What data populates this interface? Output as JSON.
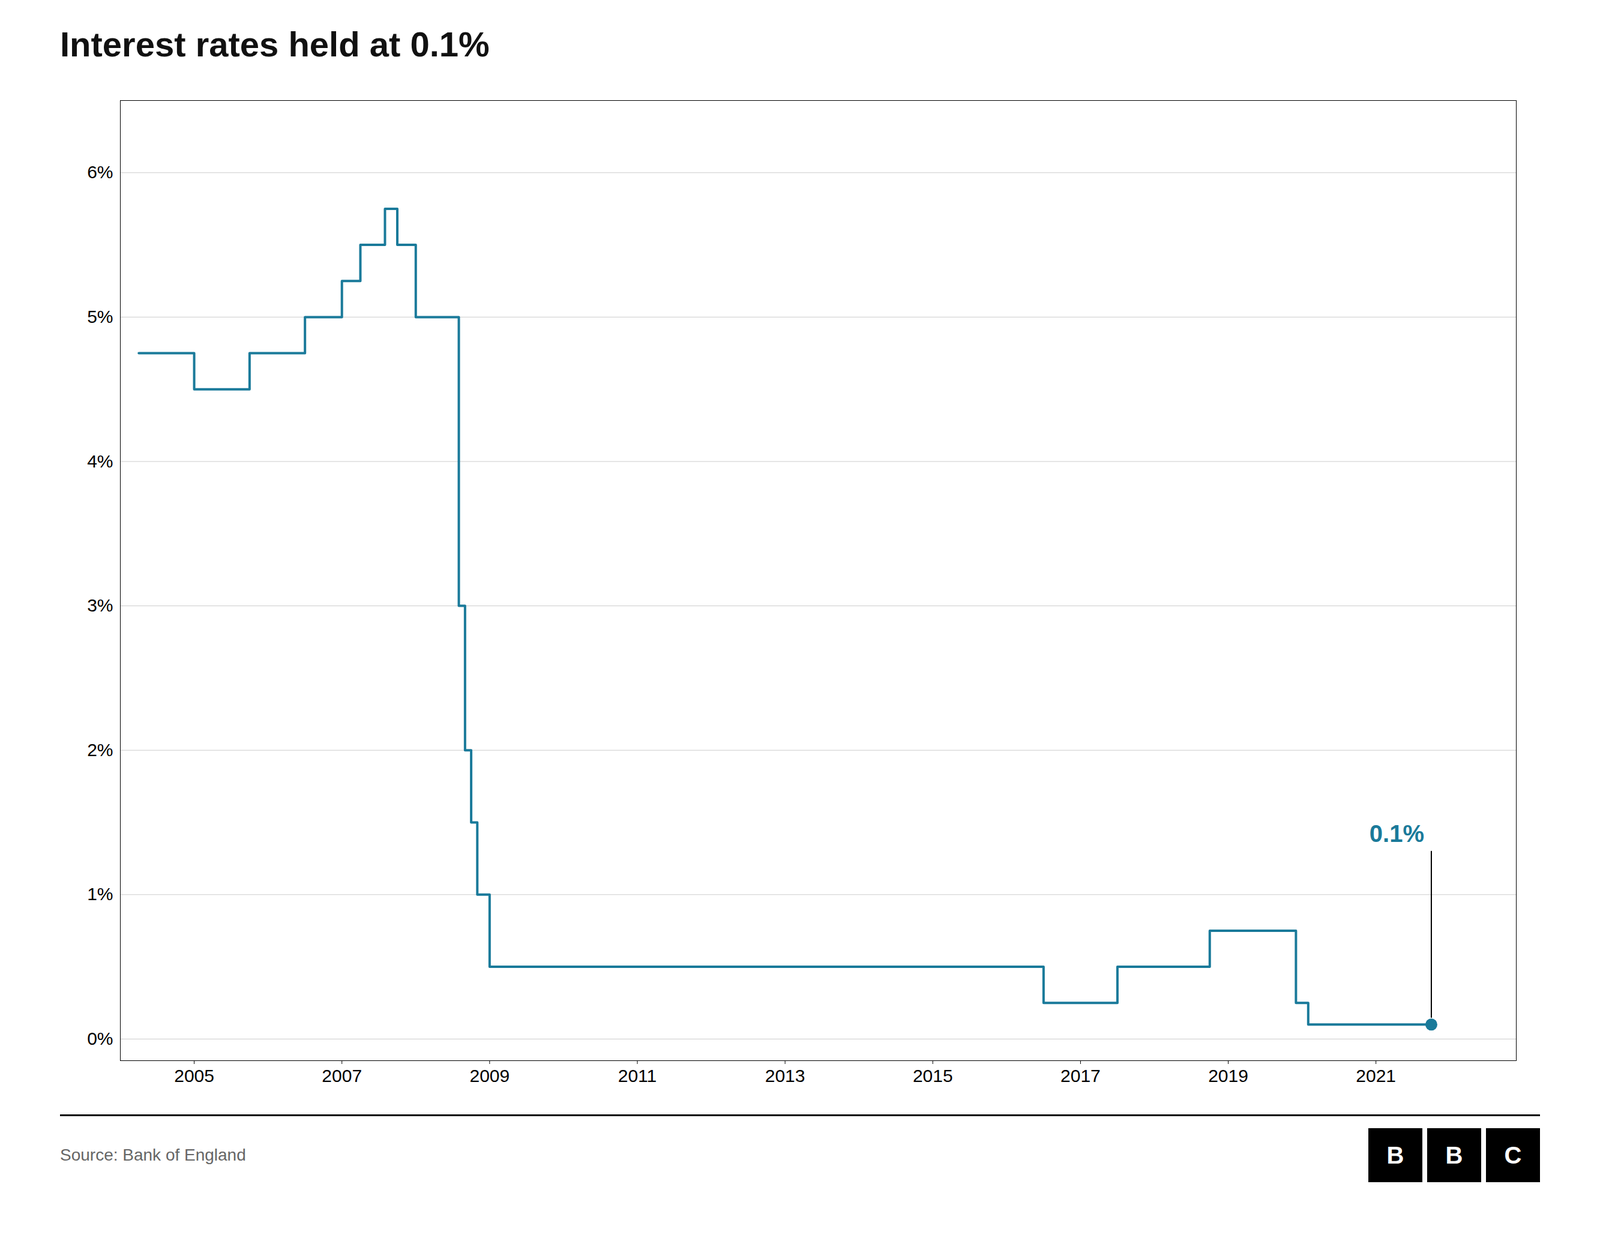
{
  "chart_data": {
    "type": "line",
    "title": "Interest rates held at 0.1%",
    "source": "Source: Bank of England",
    "logo": "BBC",
    "color": "#1a7a9a",
    "x": [
      2004.25,
      2005.0,
      2005.0,
      2005.75,
      2005.75,
      2006.5,
      2006.5,
      2007.0,
      2007.0,
      2007.25,
      2007.25,
      2007.583,
      2007.583,
      2007.75,
      2007.75,
      2008.0,
      2008.0,
      2008.583,
      2008.583,
      2008.667,
      2008.667,
      2008.75,
      2008.75,
      2008.833,
      2008.833,
      2009.0,
      2009.0,
      2016.5,
      2016.5,
      2017.5,
      2017.5,
      2018.75,
      2018.75,
      2019.917,
      2019.917,
      2020.083,
      2020.083,
      2021.75
    ],
    "values": [
      4.75,
      4.75,
      4.5,
      4.5,
      4.75,
      4.75,
      5.0,
      5.0,
      5.25,
      5.25,
      5.5,
      5.5,
      5.75,
      5.75,
      5.5,
      5.5,
      5.0,
      5.0,
      3.0,
      3.0,
      2.0,
      2.0,
      1.5,
      1.5,
      1.0,
      1.0,
      0.5,
      0.5,
      0.25,
      0.25,
      0.5,
      0.5,
      0.75,
      0.75,
      0.25,
      0.25,
      0.1,
      0.1
    ],
    "end_point": {
      "x": 2021.75,
      "y": 0.1
    },
    "annotation": {
      "text": "0.1%",
      "x": 2021.75,
      "y": 1.42,
      "line_y": [
        0.15,
        1.3
      ],
      "color": "#1a7a9a"
    },
    "xlim": [
      2004.0,
      2022.9
    ],
    "ylim": [
      -0.15,
      6.5
    ],
    "xticks": [
      2005,
      2007,
      2009,
      2011,
      2013,
      2015,
      2017,
      2019,
      2021
    ],
    "yticks": [
      {
        "value": 0,
        "label": "0%"
      },
      {
        "value": 1,
        "label": "1%"
      },
      {
        "value": 2,
        "label": "2%"
      },
      {
        "value": 3,
        "label": "3%"
      },
      {
        "value": 4,
        "label": "4%"
      },
      {
        "value": 5,
        "label": "5%"
      },
      {
        "value": 6,
        "label": "6%"
      }
    ],
    "grid": "y"
  }
}
